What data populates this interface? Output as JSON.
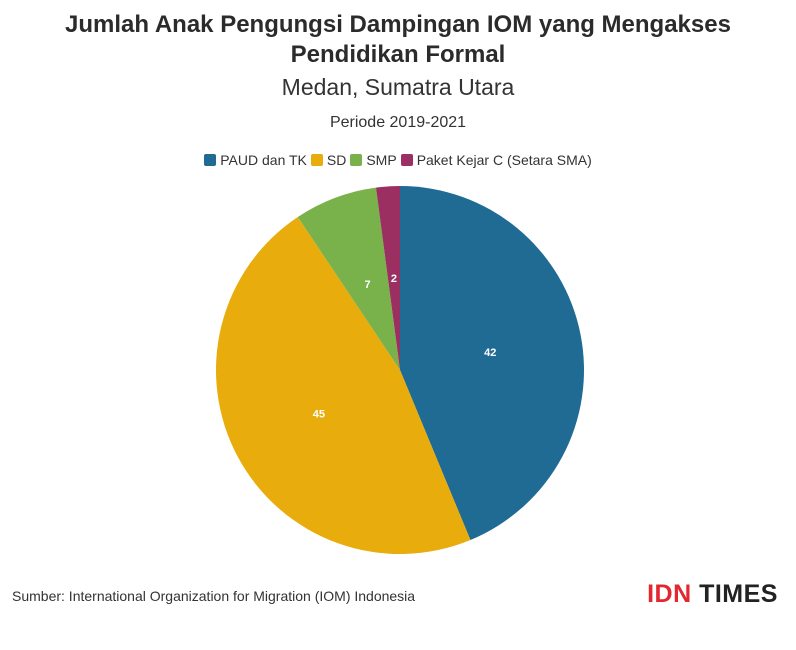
{
  "title_line1": "Jumlah Anak Pengungsi Dampingan IOM yang Mengakses",
  "title_line2": "Pendidikan Formal",
  "subtitle": "Medan, Sumatra Utara",
  "period": "Periode 2019-2021",
  "source": "Sumber: International Organization for Migration (IOM) Indonesia",
  "logo": {
    "part1": "IDN",
    "part2": "TIMES"
  },
  "colors": {
    "paud": "#1f6b94",
    "sd": "#e8ad0c",
    "smp": "#79b14a",
    "paket": "#9c2f62"
  },
  "chart_data": {
    "type": "pie",
    "title": "Jumlah Anak Pengungsi Dampingan IOM yang Mengakses Pendidikan Formal",
    "subtitle": "Medan, Sumatra Utara",
    "legend_position": "top",
    "categories": [
      "PAUD dan TK",
      "SD",
      "SMP",
      "Paket Kejar C (Setara SMA)"
    ],
    "values": [
      42,
      45,
      7,
      2
    ],
    "colors": [
      "#1f6b94",
      "#e8ad0c",
      "#79b14a",
      "#9c2f62"
    ]
  }
}
